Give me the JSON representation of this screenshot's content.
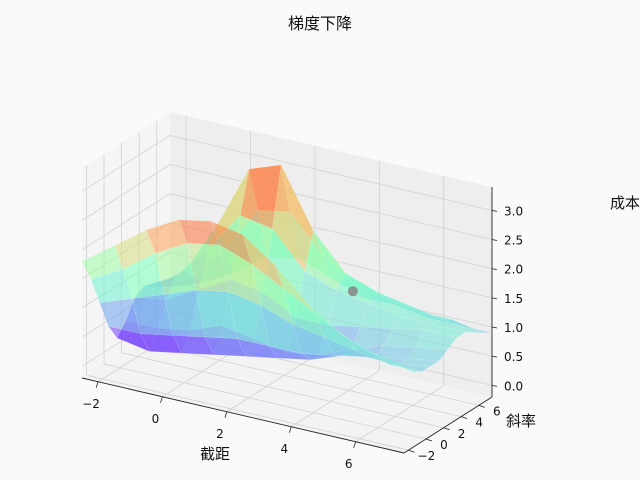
{
  "chart_data": {
    "type": "surface3d",
    "title": "梯度下降",
    "xlabel": "截距",
    "ylabel": "斜率",
    "zlabel": "成本",
    "x_ticks": [
      "−2",
      "0",
      "2",
      "4",
      "6"
    ],
    "y_ticks": [
      "−2",
      "0",
      "2",
      "4",
      "6"
    ],
    "z_ticks": [
      "0.0",
      "0.5",
      "1.0",
      "1.5",
      "2.0",
      "2.5",
      "3.0"
    ],
    "xlim": [
      -2.5,
      7.5
    ],
    "ylim": [
      -2.5,
      7.5
    ],
    "zlim": [
      -0.2,
      3.4
    ],
    "grid": true,
    "colormap": "rainbow",
    "surface": {
      "x": [
        -2.5,
        -1.5,
        -0.5,
        0.5,
        1.5,
        2.5,
        3.5,
        4.5,
        5.5,
        6.5,
        7.5
      ],
      "y": [
        -2.5,
        -1.5,
        -0.5,
        0.5,
        1.5,
        2.5,
        3.5,
        4.5,
        5.5,
        6.5,
        7.5
      ],
      "z": [
        [
          1.8,
          2.2,
          2.6,
          2.9,
          3.0,
          2.9,
          2.5,
          2.0,
          1.6,
          1.4,
          1.3
        ],
        [
          1.4,
          1.7,
          2.1,
          2.4,
          2.5,
          2.3,
          2.0,
          1.7,
          1.4,
          1.2,
          1.1
        ],
        [
          0.9,
          1.1,
          1.3,
          1.5,
          1.6,
          1.5,
          1.3,
          1.2,
          1.1,
          1.0,
          1.0
        ],
        [
          0.4,
          0.4,
          0.5,
          0.6,
          0.7,
          0.7,
          0.7,
          0.8,
          0.9,
          0.9,
          1.0
        ],
        [
          0.1,
          0.0,
          0.1,
          0.2,
          0.3,
          0.4,
          0.5,
          0.7,
          0.8,
          0.9,
          1.0
        ],
        [
          0.3,
          0.3,
          0.4,
          0.6,
          0.5,
          0.4,
          0.5,
          0.7,
          0.9,
          1.0,
          1.1
        ],
        [
          0.6,
          0.7,
          1.0,
          1.3,
          1.2,
          0.9,
          0.9,
          1.0,
          1.1,
          1.2,
          1.2
        ],
        [
          0.7,
          1.0,
          1.6,
          2.3,
          2.2,
          1.6,
          1.4,
          1.3,
          1.2,
          1.2,
          1.2
        ],
        [
          0.6,
          1.0,
          1.9,
          3.0,
          3.2,
          2.2,
          1.6,
          1.4,
          1.3,
          1.2,
          1.1
        ],
        [
          0.5,
          0.8,
          1.4,
          2.2,
          2.3,
          1.7,
          1.3,
          1.2,
          1.1,
          1.1,
          1.0
        ],
        [
          0.4,
          0.6,
          0.9,
          1.3,
          1.4,
          1.2,
          1.0,
          1.0,
          0.9,
          0.9,
          0.9
        ]
      ]
    },
    "marker": {
      "x": 4.0,
      "y": 4.5,
      "z": 1.45,
      "color": "#8a8a8a"
    }
  }
}
